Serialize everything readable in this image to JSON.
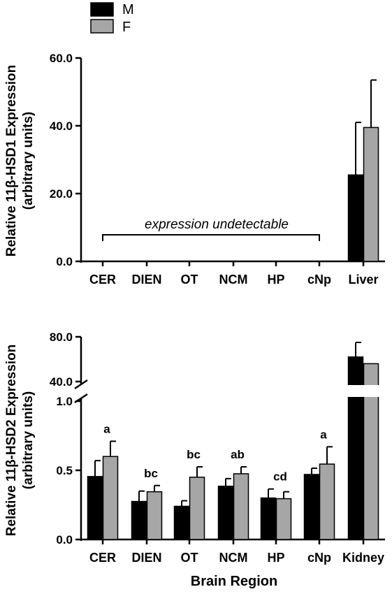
{
  "legend": {
    "items": [
      {
        "label": "M",
        "color": "#000000"
      },
      {
        "label": "F",
        "color": "#a6a6a6"
      }
    ]
  },
  "chart_data": [
    {
      "type": "bar",
      "ylabel_line1": "Relative 11β-HSD1 Expression",
      "ylabel_line2": "(arbitrary units)",
      "categories": [
        "CER",
        "DIEN",
        "OT",
        "NCM",
        "HP",
        "cNp",
        "Liver"
      ],
      "ylim": [
        0,
        60
      ],
      "yticks": [
        "0.0",
        "20.0",
        "40.0",
        "60.0"
      ],
      "series": [
        {
          "name": "M",
          "values": [
            null,
            null,
            null,
            null,
            null,
            null,
            25.5
          ],
          "errors": [
            null,
            null,
            null,
            null,
            null,
            null,
            15.5
          ]
        },
        {
          "name": "F",
          "values": [
            null,
            null,
            null,
            null,
            null,
            null,
            39.5
          ],
          "errors": [
            null,
            null,
            null,
            null,
            null,
            null,
            14.0
          ]
        }
      ],
      "annotation": "expression undetectable"
    },
    {
      "type": "bar",
      "ylabel_line1": "Relative 11β-HSD2 Expression",
      "ylabel_line2": "(arbitrary units)",
      "xlabel": "Brain Region",
      "categories": [
        "CER",
        "DIEN",
        "OT",
        "NCM",
        "HP",
        "cNp",
        "Kidney"
      ],
      "ylim_lower": [
        0,
        1.0
      ],
      "ylim_upper": [
        40,
        80
      ],
      "yticks_lower": [
        "0.0",
        "0.5",
        "1.0"
      ],
      "yticks_upper": [
        "40.0",
        "80.0"
      ],
      "axis_break": true,
      "series": [
        {
          "name": "M",
          "values": [
            0.455,
            0.275,
            0.24,
            0.385,
            0.3,
            0.47,
            62
          ],
          "errors": [
            0.115,
            0.075,
            0.04,
            0.055,
            0.065,
            0.045,
            13
          ]
        },
        {
          "name": "F",
          "values": [
            0.6,
            0.345,
            0.45,
            0.475,
            0.295,
            0.545,
            56
          ],
          "errors": [
            0.11,
            0.045,
            0.075,
            0.05,
            0.05,
            0.125,
            0
          ]
        }
      ],
      "significance_letters": [
        "a",
        "bc",
        "bc",
        "ab",
        "cd",
        "a",
        ""
      ]
    }
  ]
}
